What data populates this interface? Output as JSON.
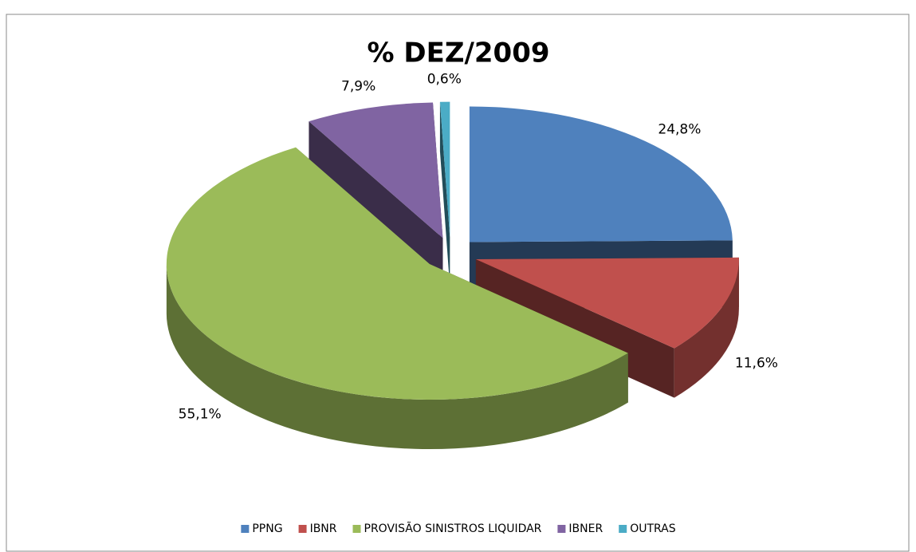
{
  "chart_data": {
    "type": "pie",
    "title": "% DEZ/2009",
    "categories": [
      "PPNG",
      "IBNR",
      "PROVISÃO SINISTROS LIQUIDAR",
      "IBNER",
      "OUTRAS"
    ],
    "values": [
      24.8,
      11.6,
      55.1,
      7.9,
      0.6
    ],
    "value_labels": [
      "24,8%",
      "11,6%",
      "55,1%",
      "7,9%",
      "0,6%"
    ],
    "colors": [
      "#4f81bd",
      "#c0504d",
      "#9bbb59",
      "#8064a2",
      "#4bacc6"
    ],
    "legend": "bottom"
  }
}
